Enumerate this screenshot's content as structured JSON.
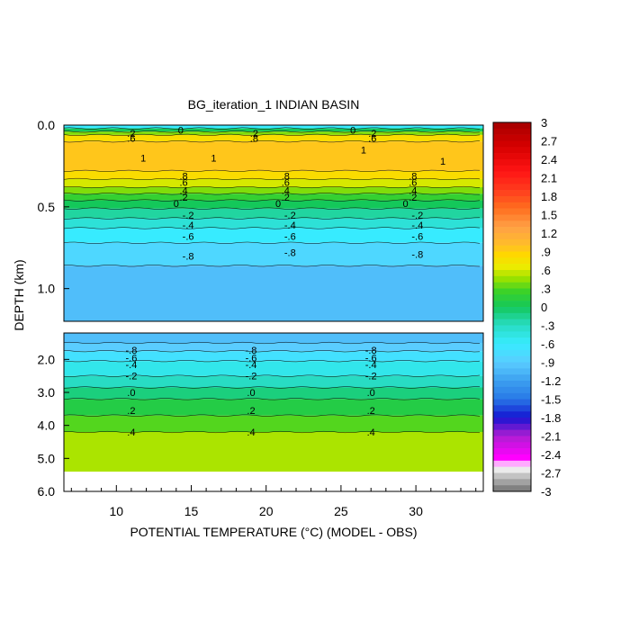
{
  "chart_data": {
    "type": "heatmap",
    "title": "BG_iteration_1 INDIAN BASIN",
    "xlabel": "POTENTIAL TEMPERATURE (°C) (MODEL - OBS)",
    "ylabel": "DEPTH (km)",
    "x_ticks": [
      "10",
      "15",
      "20",
      "25",
      "30"
    ],
    "x_tick_values": [
      10,
      15,
      20,
      25,
      30
    ],
    "xlim": [
      6.5,
      34.5
    ],
    "upper_panel": {
      "ylim": [
        0.0,
        1.2
      ],
      "y_ticks": [
        "0.0",
        "0.5",
        "1.0"
      ],
      "y_tick_values": [
        0.0,
        0.5,
        1.0
      ],
      "bands": [
        {
          "d0": 0.0,
          "d1": 0.02,
          "value": -0.6
        },
        {
          "d0": 0.02,
          "d1": 0.04,
          "value": 0.0
        },
        {
          "d0": 0.04,
          "d1": 0.06,
          "value": 0.4
        },
        {
          "d0": 0.06,
          "d1": 0.1,
          "value": 0.8
        },
        {
          "d0": 0.1,
          "d1": 0.28,
          "value": 0.95
        },
        {
          "d0": 0.28,
          "d1": 0.33,
          "value": 0.8
        },
        {
          "d0": 0.33,
          "d1": 0.38,
          "value": 0.6
        },
        {
          "d0": 0.38,
          "d1": 0.42,
          "value": 0.4
        },
        {
          "d0": 0.42,
          "d1": 0.46,
          "value": 0.2
        },
        {
          "d0": 0.46,
          "d1": 0.51,
          "value": 0.0
        },
        {
          "d0": 0.51,
          "d1": 0.57,
          "value": -0.2
        },
        {
          "d0": 0.57,
          "d1": 0.63,
          "value": -0.4
        },
        {
          "d0": 0.63,
          "d1": 0.72,
          "value": -0.6
        },
        {
          "d0": 0.72,
          "d1": 0.86,
          "value": -0.8
        },
        {
          "d0": 0.86,
          "d1": 1.2,
          "value": -1.0
        }
      ],
      "contour_labels": [
        {
          "x": 14.3,
          "depth": 0.03,
          "text": "0"
        },
        {
          "x": 25.8,
          "depth": 0.03,
          "text": "0"
        },
        {
          "x": 11.0,
          "depth": 0.05,
          "text": ".2"
        },
        {
          "x": 11.0,
          "depth": 0.08,
          "text": ".6"
        },
        {
          "x": 19.2,
          "depth": 0.05,
          "text": ".2"
        },
        {
          "x": 19.2,
          "depth": 0.08,
          "text": ".8"
        },
        {
          "x": 27.1,
          "depth": 0.05,
          "text": ".2"
        },
        {
          "x": 27.1,
          "depth": 0.08,
          "text": ".6"
        },
        {
          "x": 11.8,
          "depth": 0.2,
          "text": "1"
        },
        {
          "x": 16.5,
          "depth": 0.2,
          "text": "1"
        },
        {
          "x": 26.5,
          "depth": 0.15,
          "text": "1"
        },
        {
          "x": 31.8,
          "depth": 0.22,
          "text": "1"
        },
        {
          "x": 14.5,
          "depth": 0.31,
          "text": ".8"
        },
        {
          "x": 14.5,
          "depth": 0.35,
          "text": ".6"
        },
        {
          "x": 14.5,
          "depth": 0.4,
          "text": ".4"
        },
        {
          "x": 14.5,
          "depth": 0.44,
          "text": ".2"
        },
        {
          "x": 14.0,
          "depth": 0.48,
          "text": "0"
        },
        {
          "x": 14.8,
          "depth": 0.55,
          "text": "-.2"
        },
        {
          "x": 14.8,
          "depth": 0.61,
          "text": "-.4"
        },
        {
          "x": 14.8,
          "depth": 0.68,
          "text": "-.6"
        },
        {
          "x": 14.8,
          "depth": 0.8,
          "text": "-.8"
        },
        {
          "x": 21.3,
          "depth": 0.31,
          "text": ".8"
        },
        {
          "x": 21.3,
          "depth": 0.35,
          "text": ".6"
        },
        {
          "x": 21.3,
          "depth": 0.4,
          "text": ".4"
        },
        {
          "x": 21.3,
          "depth": 0.44,
          "text": ".2"
        },
        {
          "x": 20.8,
          "depth": 0.48,
          "text": "0"
        },
        {
          "x": 21.6,
          "depth": 0.55,
          "text": "-.2"
        },
        {
          "x": 21.6,
          "depth": 0.61,
          "text": "-.4"
        },
        {
          "x": 21.6,
          "depth": 0.68,
          "text": "-.6"
        },
        {
          "x": 21.6,
          "depth": 0.78,
          "text": "-.8"
        },
        {
          "x": 29.8,
          "depth": 0.31,
          "text": ".8"
        },
        {
          "x": 29.8,
          "depth": 0.35,
          "text": ".6"
        },
        {
          "x": 29.8,
          "depth": 0.4,
          "text": ".4"
        },
        {
          "x": 29.8,
          "depth": 0.44,
          "text": ".2"
        },
        {
          "x": 29.3,
          "depth": 0.48,
          "text": "0"
        },
        {
          "x": 30.1,
          "depth": 0.55,
          "text": "-.2"
        },
        {
          "x": 30.1,
          "depth": 0.61,
          "text": "-.4"
        },
        {
          "x": 30.1,
          "depth": 0.68,
          "text": "-.6"
        },
        {
          "x": 30.1,
          "depth": 0.79,
          "text": "-.8"
        }
      ]
    },
    "lower_panel": {
      "ylim": [
        1.2,
        6.0
      ],
      "y_ticks": [
        "2.0",
        "3.0",
        "4.0",
        "5.0",
        "6.0"
      ],
      "y_tick_values": [
        2.0,
        3.0,
        4.0,
        5.0,
        6.0
      ],
      "data_bottom_depth": 5.4,
      "bands": [
        {
          "d0": 1.2,
          "d1": 1.5,
          "value": -1.0
        },
        {
          "d0": 1.5,
          "d1": 1.75,
          "value": -0.9
        },
        {
          "d0": 1.75,
          "d1": 2.05,
          "value": -0.7
        },
        {
          "d0": 2.05,
          "d1": 2.5,
          "value": -0.5
        },
        {
          "d0": 2.5,
          "d1": 2.85,
          "value": -0.3
        },
        {
          "d0": 2.85,
          "d1": 3.2,
          "value": -0.1
        },
        {
          "d0": 3.2,
          "d1": 3.7,
          "value": 0.1
        },
        {
          "d0": 3.7,
          "d1": 4.2,
          "value": 0.3
        },
        {
          "d0": 4.2,
          "d1": 5.4,
          "value": 0.5
        }
      ],
      "contour_labels": [
        {
          "x": 11.0,
          "depth": 1.72,
          "text": "-.8"
        },
        {
          "x": 11.0,
          "depth": 1.95,
          "text": "-.6"
        },
        {
          "x": 11.0,
          "depth": 2.15,
          "text": "-.4"
        },
        {
          "x": 11.0,
          "depth": 2.5,
          "text": "-.2"
        },
        {
          "x": 11.0,
          "depth": 3.0,
          "text": ".0"
        },
        {
          "x": 11.0,
          "depth": 3.55,
          "text": ".2"
        },
        {
          "x": 11.0,
          "depth": 4.2,
          "text": ".4"
        },
        {
          "x": 19.0,
          "depth": 1.72,
          "text": "-.8"
        },
        {
          "x": 19.0,
          "depth": 1.95,
          "text": "-.6"
        },
        {
          "x": 19.0,
          "depth": 2.15,
          "text": "-.4"
        },
        {
          "x": 19.0,
          "depth": 2.5,
          "text": "-.2"
        },
        {
          "x": 19.0,
          "depth": 3.0,
          "text": ".0"
        },
        {
          "x": 19.0,
          "depth": 3.55,
          "text": ".2"
        },
        {
          "x": 19.0,
          "depth": 4.2,
          "text": ".4"
        },
        {
          "x": 27.0,
          "depth": 1.72,
          "text": "-.8"
        },
        {
          "x": 27.0,
          "depth": 1.95,
          "text": "-.6"
        },
        {
          "x": 27.0,
          "depth": 2.15,
          "text": "-.4"
        },
        {
          "x": 27.0,
          "depth": 2.5,
          "text": "-.2"
        },
        {
          "x": 27.0,
          "depth": 3.0,
          "text": ".0"
        },
        {
          "x": 27.0,
          "depth": 3.55,
          "text": ".2"
        },
        {
          "x": 27.0,
          "depth": 4.2,
          "text": ".4"
        }
      ]
    },
    "colorbar": {
      "min": -3,
      "max": 3,
      "interval": 0.1,
      "tick_labels": [
        "3",
        "2.7",
        "2.4",
        "2.1",
        "1.8",
        "1.5",
        "1.2",
        ".9",
        ".6",
        ".3",
        "0",
        "-.3",
        "-.6",
        "-.9",
        "-1.2",
        "-1.5",
        "-1.8",
        "-2.1",
        "-2.4",
        "-2.7",
        "-3"
      ],
      "tick_values": [
        3,
        2.7,
        2.4,
        2.1,
        1.8,
        1.5,
        1.2,
        0.9,
        0.6,
        0.3,
        0,
        -0.3,
        -0.6,
        -0.9,
        -1.2,
        -1.5,
        -1.8,
        -2.1,
        -2.4,
        -2.7,
        -3
      ]
    },
    "grid": false,
    "legend": "right"
  }
}
